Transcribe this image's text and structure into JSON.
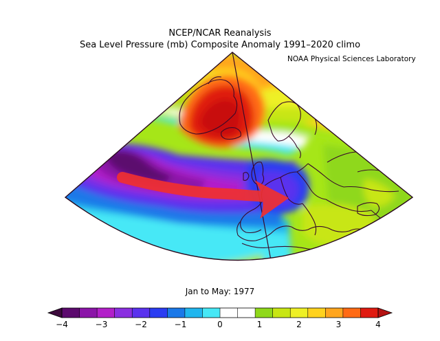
{
  "header": {
    "title": "NCEP/NCAR Reanalysis",
    "subtitle": "Sea Level Pressure (mb) Composite Anomaly 1991–2020 climo",
    "credit": "NOAA Physical Sciences Laboratory"
  },
  "footer": {
    "period": "Jan to May: 1977"
  },
  "colorbar": {
    "tick_labels": [
      "−4",
      "−3",
      "−2",
      "−1",
      "0",
      "1",
      "2",
      "3",
      "4"
    ],
    "colors": [
      "#5c0a6e",
      "#8b14a8",
      "#b21fc9",
      "#8a2fe0",
      "#5a32ee",
      "#2a3cf2",
      "#1a78e8",
      "#20b6ee",
      "#46e8f6",
      "#ffffff",
      "#ffffff",
      "#8fd81a",
      "#c8e614",
      "#eef026",
      "#ffd21e",
      "#ffa51e",
      "#ff6a14",
      "#e01a10"
    ],
    "lower_bound": -4,
    "upper_bound": 4
  },
  "map": {
    "field": "Sea Level Pressure anomaly (mb)",
    "arrow_color": "#f03030",
    "boundary_color": "#3a0a2a"
  }
}
